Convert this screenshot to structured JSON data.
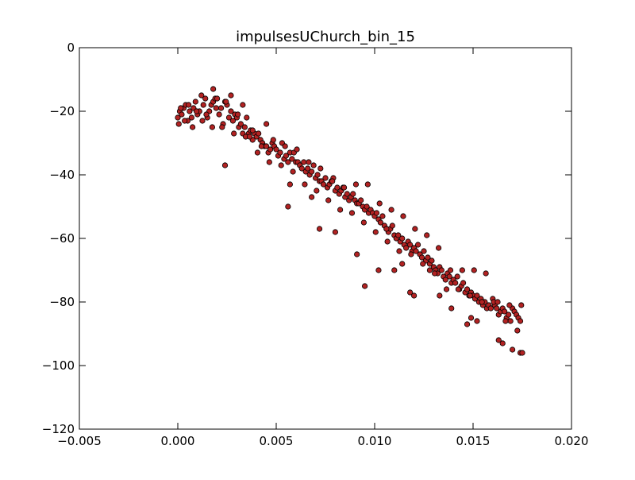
{
  "chart_data": {
    "type": "scatter",
    "title": "impulsesUChurch_bin_15",
    "xlabel": "",
    "ylabel": "",
    "xlim": [
      -0.005,
      0.02
    ],
    "ylim": [
      -120,
      0
    ],
    "xticks": [
      -0.005,
      0.0,
      0.005,
      0.01,
      0.015,
      0.02
    ],
    "xtick_labels": [
      "−0.005",
      "0.000",
      "0.005",
      "0.010",
      "0.015",
      "0.020"
    ],
    "yticks": [
      0,
      -20,
      -40,
      -60,
      -80,
      -100,
      -120
    ],
    "ytick_labels": [
      "0",
      "−20",
      "−40",
      "−60",
      "−80",
      "−100",
      "−120"
    ],
    "grid": false,
    "legend": "none",
    "colors": {
      "marker_fill": "#b22222",
      "marker_edge": "#000000",
      "axes": "#000000",
      "background": "#ffffff"
    },
    "x": [
      0.0,
      0.0001,
      0.0002,
      0.0003,
      0.0004,
      0.0005,
      0.0006,
      0.0007,
      0.0008,
      0.0009,
      0.001,
      0.0011,
      0.0012,
      0.0013,
      0.0014,
      0.0015,
      0.0016,
      0.0017,
      0.0018,
      0.0019,
      0.002,
      0.0021,
      0.0022,
      0.0023,
      0.0024,
      0.0025,
      0.0026,
      0.0027,
      0.0028,
      0.0029,
      0.003,
      0.0031,
      0.0032,
      0.0033,
      0.0034,
      0.0035,
      0.0036,
      0.0037,
      0.0038,
      0.0039,
      0.004,
      0.0041,
      0.0042,
      0.0043,
      0.0044,
      0.0045,
      0.0046,
      0.0047,
      0.0048,
      0.0049,
      0.005,
      0.0051,
      0.0052,
      0.0053,
      0.0054,
      0.0055,
      0.0056,
      0.0057,
      0.0058,
      0.0059,
      0.006,
      0.0061,
      0.0062,
      0.0063,
      0.0064,
      0.0065,
      0.0066,
      0.0067,
      0.0068,
      0.0069,
      0.007,
      0.0071,
      0.0072,
      0.0073,
      0.0074,
      0.0075,
      0.0076,
      0.0077,
      0.0078,
      0.0079,
      0.008,
      0.0081,
      0.0082,
      0.0083,
      0.0084,
      0.0085,
      0.0086,
      0.0087,
      0.0088,
      0.0089,
      0.009,
      0.0091,
      0.0092,
      0.0093,
      0.0094,
      0.0095,
      0.0096,
      0.0097,
      0.0098,
      0.0099,
      0.01,
      0.0101,
      0.0102,
      0.0103,
      0.0104,
      0.0105,
      0.0106,
      0.0107,
      0.0108,
      0.0109,
      0.011,
      0.0111,
      0.0112,
      0.0113,
      0.0114,
      0.0115,
      0.0116,
      0.0117,
      0.0118,
      0.0119,
      0.012,
      0.0121,
      0.0122,
      0.0123,
      0.0124,
      0.0125,
      0.0126,
      0.0127,
      0.0128,
      0.0129,
      0.013,
      0.0131,
      0.0132,
      0.0133,
      0.0134,
      0.0135,
      0.0136,
      0.0137,
      0.0138,
      0.0139,
      0.014,
      0.0141,
      0.0142,
      0.0143,
      0.0144,
      0.0145,
      0.0146,
      0.0147,
      0.0148,
      0.0149,
      0.015,
      0.0151,
      0.0152,
      0.0153,
      0.0154,
      0.0155,
      0.0156,
      0.0157,
      0.0158,
      0.0159,
      0.016,
      0.0161,
      0.0162,
      0.0163,
      0.0164,
      0.0165,
      0.0166,
      0.0167,
      0.0168,
      0.0169,
      0.017,
      0.0171,
      0.0172,
      0.0173,
      0.0174,
      5e-05,
      0.00035,
      0.00075,
      0.00125,
      0.00175,
      0.00225,
      0.00285,
      0.00345,
      0.00405,
      0.00465,
      0.00525,
      0.00585,
      0.00645,
      0.00705,
      0.00765,
      0.00825,
      0.00885,
      0.00945,
      0.01005,
      0.01065,
      0.01125,
      0.01185,
      0.01245,
      0.01305,
      0.01365,
      0.01425,
      0.01485,
      0.01545,
      0.01605,
      0.01665,
      0.01725,
      0.00015,
      0.00055,
      0.00095,
      0.00145,
      0.00195,
      0.00245,
      0.00305,
      0.00365,
      0.00425,
      0.00485,
      0.00545,
      0.00605,
      0.00665,
      0.00725,
      0.00785,
      0.00845,
      0.00905,
      0.00965,
      0.01025,
      0.01085,
      0.01145,
      0.01205,
      0.01265,
      0.01325,
      0.01385,
      0.01445,
      0.01505,
      0.01565,
      0.01625,
      0.01685,
      0.01745,
      0.0018,
      0.0027,
      0.0033,
      0.0038,
      0.0045,
      0.0056,
      0.0057,
      0.0095,
      0.0102,
      0.011,
      0.0118,
      0.012,
      0.0133,
      0.0139,
      0.0147,
      0.0149,
      0.0152,
      0.0163,
      0.0165,
      0.017,
      0.0174,
      0.0175,
      0.0024,
      0.0068,
      0.0072,
      0.008,
      0.0091,
      0.0106,
      0.0114,
      0.0128
    ],
    "y": [
      -22,
      -20,
      -21,
      -19,
      -18,
      -23,
      -20,
      -22,
      -19,
      -17,
      -21,
      -20,
      -15,
      -18,
      -16,
      -22,
      -20,
      -18,
      -17,
      -16,
      -16,
      -21,
      -19,
      -24,
      -17,
      -18,
      -22,
      -20,
      -23,
      -21,
      -22,
      -25,
      -24,
      -27,
      -25,
      -22,
      -27,
      -26,
      -29,
      -27,
      -28,
      -27,
      -29,
      -30,
      -31,
      -31,
      -33,
      -32,
      -30,
      -31,
      -32,
      -34,
      -33,
      -30,
      -35,
      -34,
      -36,
      -33,
      -35,
      -33,
      -36,
      -36,
      -37,
      -38,
      -36,
      -39,
      -38,
      -40,
      -39,
      -37,
      -41,
      -40,
      -42,
      -42,
      -43,
      -41,
      -44,
      -43,
      -42,
      -41,
      -45,
      -44,
      -46,
      -45,
      -44,
      -47,
      -46,
      -48,
      -47,
      -46,
      -48,
      -49,
      -49,
      -48,
      -50,
      -51,
      -50,
      -52,
      -51,
      -52,
      -53,
      -52,
      -54,
      -55,
      -53,
      -56,
      -57,
      -58,
      -57,
      -56,
      -59,
      -60,
      -59,
      -61,
      -60,
      -62,
      -63,
      -61,
      -62,
      -64,
      -63,
      -64,
      -62,
      -65,
      -66,
      -64,
      -67,
      -66,
      -68,
      -67,
      -69,
      -70,
      -71,
      -69,
      -70,
      -72,
      -73,
      -71,
      -72,
      -74,
      -73,
      -74,
      -72,
      -76,
      -75,
      -74,
      -77,
      -76,
      -78,
      -77,
      -78,
      -79,
      -78,
      -80,
      -79,
      -81,
      -80,
      -82,
      -81,
      -82,
      -79,
      -81,
      -82,
      -84,
      -83,
      -82,
      -83,
      -85,
      -84,
      -86,
      -82,
      -83,
      -84,
      -85,
      -86,
      -24,
      -23,
      -25,
      -23,
      -25,
      -25,
      -27,
      -28,
      -33,
      -36,
      -37,
      -39,
      -43,
      -45,
      -48,
      -51,
      -52,
      -55,
      -58,
      -61,
      -64,
      -65,
      -68,
      -71,
      -76,
      -76,
      -78,
      -80,
      -80,
      -86,
      -89,
      -19,
      -18,
      -20,
      -21,
      -19,
      -17,
      -21,
      -28,
      -31,
      -29,
      -31,
      -32,
      -36,
      -38,
      -42,
      -44,
      -43,
      -43,
      -49,
      -51,
      -53,
      -57,
      -59,
      -63,
      -70,
      -70,
      -70,
      -71,
      -80,
      -81,
      -81,
      -13,
      -15,
      -18,
      -26,
      -24,
      -50,
      -43,
      -75,
      -70,
      -70,
      -77,
      -78,
      -78,
      -82,
      -87,
      -85,
      -86,
      -92,
      -93,
      -95,
      -96,
      -96,
      -37,
      -47,
      -57,
      -58,
      -65,
      -57,
      -68,
      -70
    ]
  }
}
